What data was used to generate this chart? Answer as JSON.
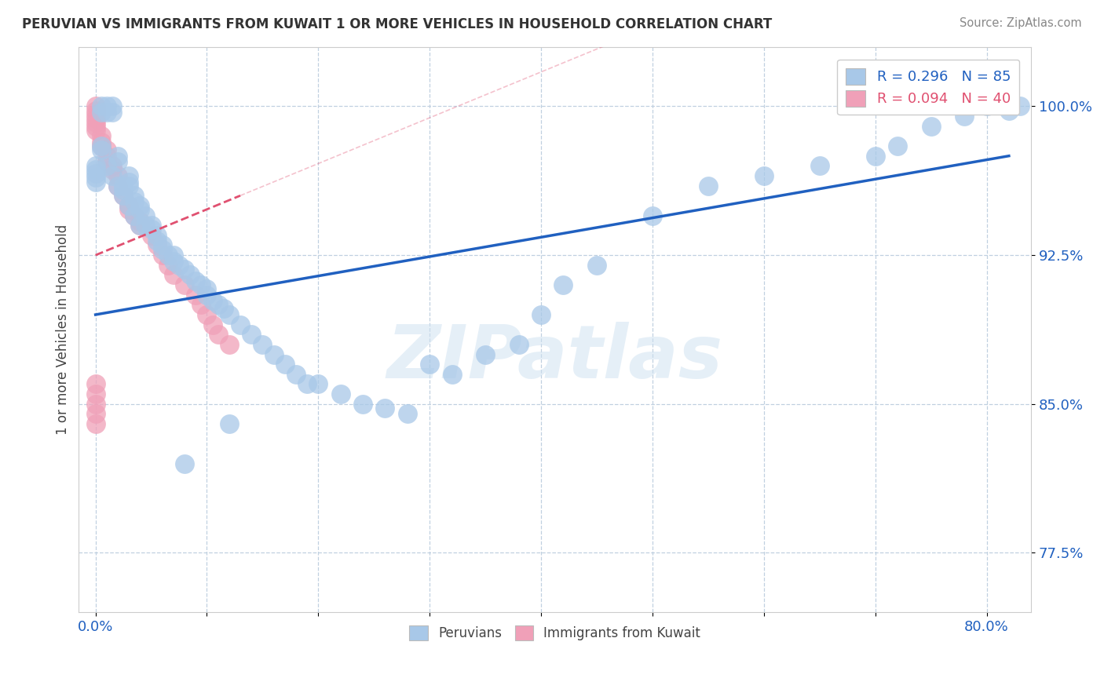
{
  "title": "PERUVIAN VS IMMIGRANTS FROM KUWAIT 1 OR MORE VEHICLES IN HOUSEHOLD CORRELATION CHART",
  "source_text": "Source: ZipAtlas.com",
  "ylabel": "1 or more Vehicles in Household",
  "watermark": "ZIPatlas",
  "legend_blue_label": "R = 0.296   N = 85",
  "legend_pink_label": "R = 0.094   N = 40",
  "blue_color": "#a8c8e8",
  "pink_color": "#f0a0b8",
  "trend_blue_color": "#2060c0",
  "trend_pink_color": "#e05070",
  "grid_color": "#c0d0e0",
  "y_ticks": [
    0.775,
    0.85,
    0.925,
    1.0
  ],
  "y_tick_labels": [
    "77.5%",
    "85.0%",
    "92.5%",
    "100.0%"
  ],
  "x_tick_positions": [
    0.0,
    0.1,
    0.2,
    0.3,
    0.4,
    0.5,
    0.6,
    0.7,
    0.8
  ],
  "x_tick_labels": [
    "0.0%",
    "",
    "",
    "",
    "",
    "",
    "",
    "",
    "80.0%"
  ],
  "xlim": [
    -0.015,
    0.84
  ],
  "ylim": [
    0.745,
    1.03
  ],
  "blue_x": [
    0.005,
    0.005,
    0.01,
    0.01,
    0.015,
    0.015,
    0.02,
    0.02,
    0.025,
    0.025,
    0.03,
    0.03,
    0.03,
    0.035,
    0.035,
    0.04,
    0.04,
    0.045,
    0.045,
    0.05,
    0.05,
    0.055,
    0.055,
    0.06,
    0.06,
    0.065,
    0.07,
    0.07,
    0.075,
    0.08,
    0.085,
    0.09,
    0.095,
    0.1,
    0.1,
    0.105,
    0.11,
    0.115,
    0.12,
    0.13,
    0.14,
    0.15,
    0.16,
    0.17,
    0.18,
    0.19,
    0.2,
    0.22,
    0.24,
    0.26,
    0.28,
    0.3,
    0.32,
    0.35,
    0.38,
    0.4,
    0.42,
    0.45,
    0.5,
    0.55,
    0.6,
    0.65,
    0.7,
    0.72,
    0.75,
    0.78,
    0.8,
    0.82,
    0.83,
    0.0,
    0.0,
    0.0,
    0.0,
    0.0,
    0.005,
    0.005,
    0.01,
    0.015,
    0.02,
    0.025,
    0.03,
    0.035,
    0.04,
    0.08,
    0.12
  ],
  "blue_y": [
    1.0,
    0.997,
    1.0,
    0.997,
    1.0,
    0.997,
    0.975,
    0.972,
    0.96,
    0.958,
    0.965,
    0.962,
    0.96,
    0.955,
    0.952,
    0.95,
    0.948,
    0.945,
    0.94,
    0.94,
    0.938,
    0.935,
    0.932,
    0.93,
    0.928,
    0.925,
    0.925,
    0.922,
    0.92,
    0.918,
    0.915,
    0.912,
    0.91,
    0.908,
    0.905,
    0.902,
    0.9,
    0.898,
    0.895,
    0.89,
    0.885,
    0.88,
    0.875,
    0.87,
    0.865,
    0.86,
    0.86,
    0.855,
    0.85,
    0.848,
    0.845,
    0.87,
    0.865,
    0.875,
    0.88,
    0.895,
    0.91,
    0.92,
    0.945,
    0.96,
    0.965,
    0.97,
    0.975,
    0.98,
    0.99,
    0.995,
    1.0,
    0.998,
    1.0,
    0.97,
    0.968,
    0.966,
    0.964,
    0.962,
    0.98,
    0.978,
    0.97,
    0.965,
    0.96,
    0.955,
    0.95,
    0.945,
    0.94,
    0.82,
    0.84
  ],
  "pink_x": [
    0.0,
    0.0,
    0.0,
    0.0,
    0.0,
    0.0,
    0.0,
    0.005,
    0.005,
    0.005,
    0.01,
    0.01,
    0.01,
    0.015,
    0.015,
    0.02,
    0.02,
    0.025,
    0.03,
    0.03,
    0.035,
    0.04,
    0.04,
    0.05,
    0.055,
    0.06,
    0.065,
    0.07,
    0.08,
    0.09,
    0.095,
    0.1,
    0.105,
    0.11,
    0.12,
    0.0,
    0.0,
    0.0,
    0.0,
    0.0
  ],
  "pink_y": [
    1.0,
    0.998,
    0.996,
    0.994,
    0.992,
    0.99,
    0.988,
    0.985,
    0.982,
    0.98,
    0.978,
    0.975,
    0.972,
    0.97,
    0.968,
    0.965,
    0.96,
    0.955,
    0.95,
    0.948,
    0.945,
    0.942,
    0.94,
    0.935,
    0.93,
    0.925,
    0.92,
    0.915,
    0.91,
    0.905,
    0.9,
    0.895,
    0.89,
    0.885,
    0.88,
    0.86,
    0.855,
    0.85,
    0.845,
    0.84
  ],
  "blue_trend_x0": 0.0,
  "blue_trend_x1": 0.82,
  "blue_trend_y0": 0.895,
  "blue_trend_y1": 0.975,
  "pink_trend_x0": 0.0,
  "pink_trend_x1": 0.13,
  "pink_trend_y0": 0.925,
  "pink_trend_y1": 0.955
}
